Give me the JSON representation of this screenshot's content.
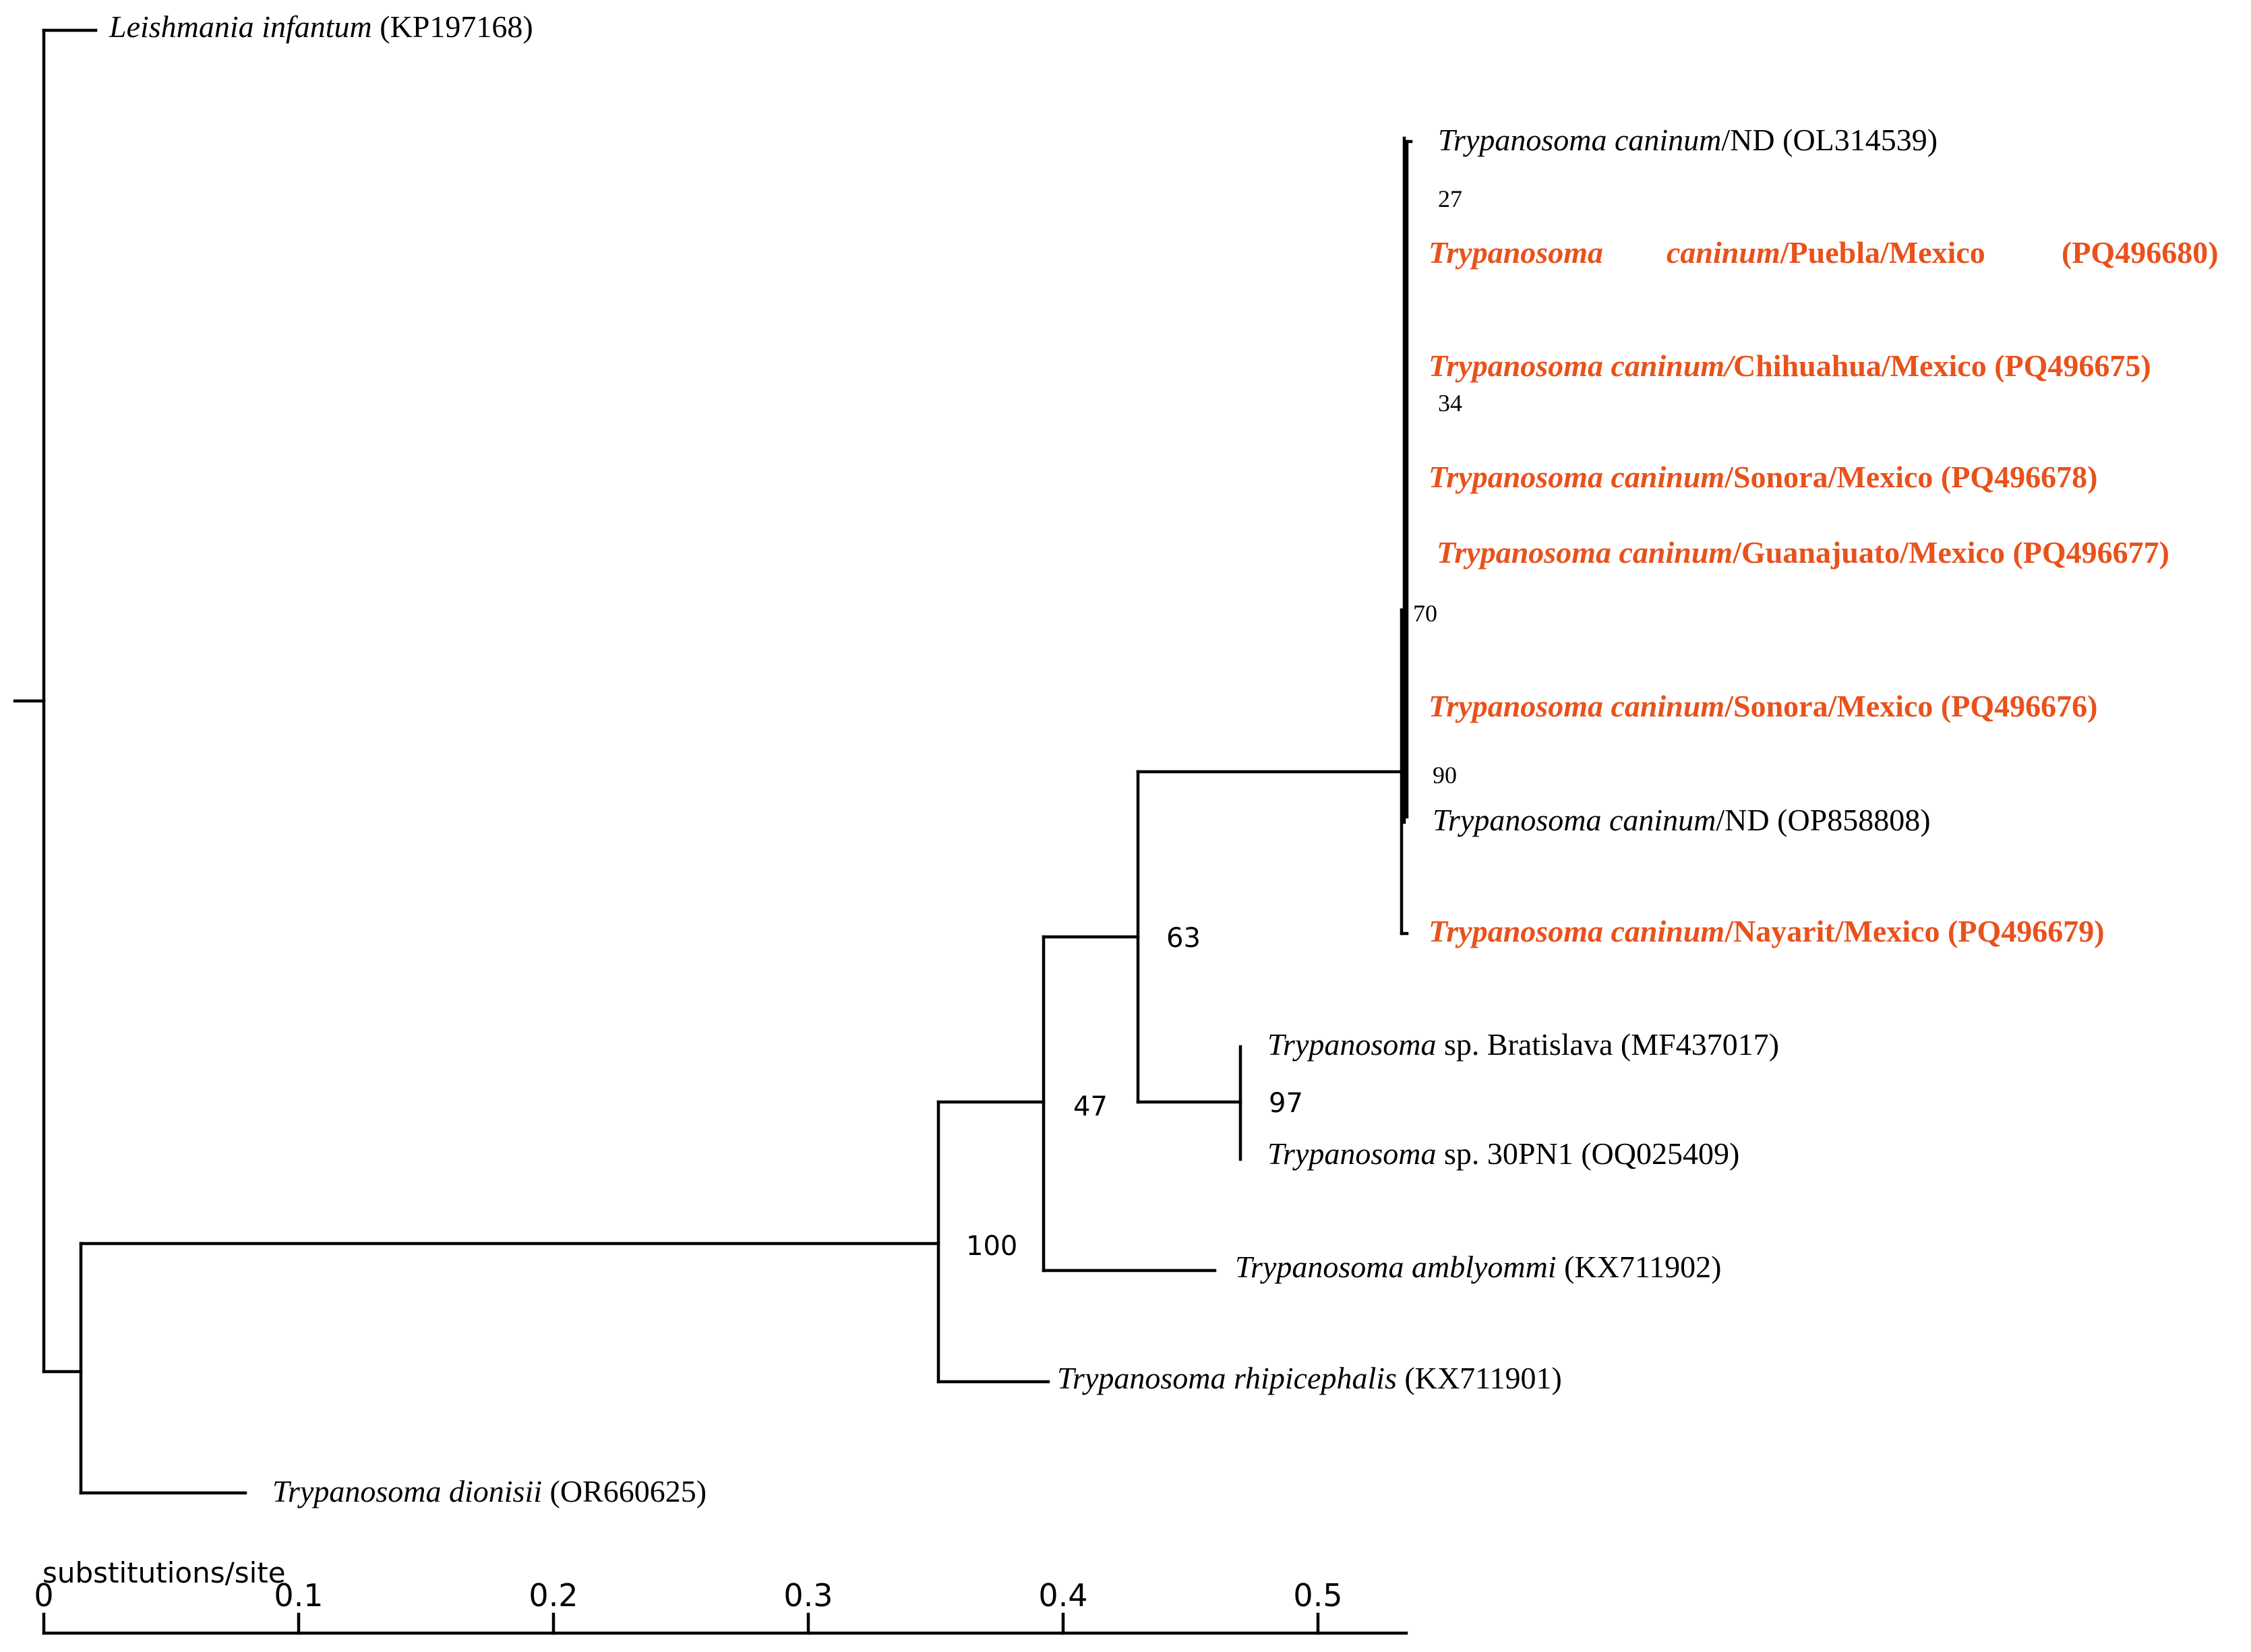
{
  "tree": {
    "taxa": [
      {
        "id": "linf",
        "genus": "Leishmania",
        "epithet": "infantum",
        "suffix": "",
        "accession": "(KP197168)",
        "highlight": false,
        "label_style": "genus-italic"
      },
      {
        "id": "ol314539",
        "genus": "Trypanosoma",
        "epithet": "caninum",
        "suffix": "/ND",
        "accession": "(OL314539)",
        "highlight": false,
        "label_style": "all-italic"
      },
      {
        "id": "pq496680",
        "genus": "Trypanosoma",
        "epithet": "caninum",
        "suffix": "/Puebla/Mexico",
        "accession": "(PQ496680)",
        "highlight": true,
        "label_style": "justified"
      },
      {
        "id": "pq496675",
        "genus": "Trypanosoma",
        "epithet": "caninum/",
        "suffix": "Chihuahua/Mexico",
        "accession": "(PQ496675)",
        "highlight": true,
        "label_style": "all-italic"
      },
      {
        "id": "pq496678",
        "genus": "Trypanosoma",
        "epithet": "caninum",
        "suffix": "/Sonora/Mexico",
        "accession": "(PQ496678)",
        "highlight": true,
        "label_style": "all-italic"
      },
      {
        "id": "pq496677",
        "genus": "Trypanosoma",
        "epithet": "caninum",
        "suffix": "/Guanajuato/Mexico",
        "accession": "(PQ496677)",
        "highlight": true,
        "label_style": "all-italic"
      },
      {
        "id": "pq496676",
        "genus": "Trypanosoma",
        "epithet": "caninum",
        "suffix": "/Sonora/Mexico",
        "accession": "(PQ496676)",
        "highlight": true,
        "label_style": "all-italic"
      },
      {
        "id": "op858808",
        "genus": "Trypanosoma",
        "epithet": "caninum",
        "suffix": "/ND",
        "accession": "(OP858808)",
        "highlight": false,
        "label_style": "all-italic"
      },
      {
        "id": "pq496679",
        "genus": "Trypanosoma",
        "epithet": "caninum",
        "suffix": "/Nayarit/Mexico",
        "accession": "(PQ496679)",
        "highlight": true,
        "label_style": "all-italic"
      },
      {
        "id": "mf437017",
        "genus": "Trypanosoma",
        "epithet": "",
        "suffix": "sp. Bratislava",
        "accession": "(MF437017)",
        "highlight": false,
        "label_style": "genus-italic"
      },
      {
        "id": "oq025409",
        "genus": "Trypanosoma",
        "epithet": "",
        "suffix": "sp. 30PN1",
        "accession": "(OQ025409)",
        "highlight": false,
        "label_style": "genus-italic"
      },
      {
        "id": "kx711902",
        "genus": "Trypanosoma",
        "epithet": "amblyommi",
        "suffix": "",
        "accession": "(KX711902)",
        "highlight": false,
        "label_style": "all-italic"
      },
      {
        "id": "kx711901",
        "genus": "Trypanosoma",
        "epithet": "rhipicephalis",
        "suffix": "",
        "accession": "(KX711901)",
        "highlight": false,
        "label_style": "all-italic"
      },
      {
        "id": "or660625",
        "genus": "Trypanosoma",
        "epithet": "dionisii",
        "suffix": "",
        "accession": "(OR660625)",
        "highlight": false,
        "label_style": "all-italic"
      }
    ],
    "support_values": [
      {
        "node": "puebla-split",
        "value": "27"
      },
      {
        "node": "chihuahua-split",
        "value": "34"
      },
      {
        "node": "caninum-inner",
        "value": "70"
      },
      {
        "node": "caninum-subclade",
        "value": "90"
      },
      {
        "node": "caninum-clade",
        "value": "63"
      },
      {
        "node": "bratislava-30pn1",
        "value": "97"
      },
      {
        "node": "amblyommi-group",
        "value": "47"
      },
      {
        "node": "tick-trypanosomes",
        "value": "100"
      }
    ],
    "highlight_color": "#E8521C"
  },
  "scale": {
    "title": "substitutions/site",
    "ticks": [
      "0",
      "0.1",
      "0.2",
      "0.3",
      "0.4",
      "0.5"
    ]
  }
}
